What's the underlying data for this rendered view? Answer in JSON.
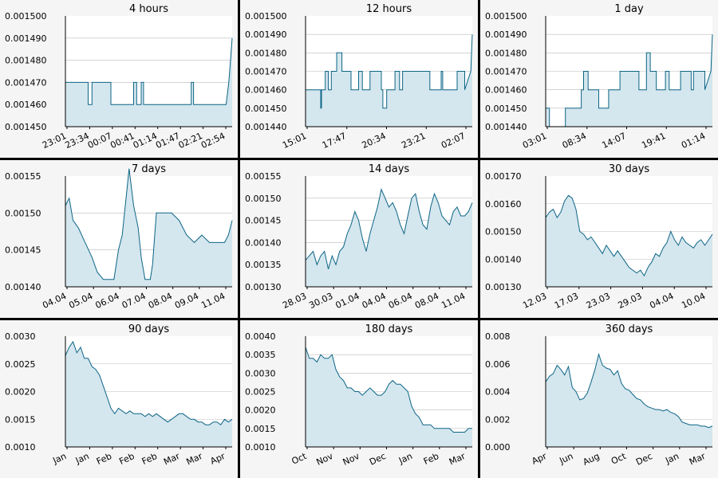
{
  "colors": {
    "line": "#0d6585",
    "fill": "#d4e6ee",
    "grid": "#bbbbbb",
    "plot_bg": "#ffffff"
  },
  "chart_data": [
    {
      "type": "area",
      "title": "4 hours",
      "y_ticks": [
        "0.001450",
        "0.001460",
        "0.001470",
        "0.001480",
        "0.001490",
        "0.001500"
      ],
      "ylim": [
        0.00145,
        0.0015
      ],
      "x_ticks": [
        "23:01",
        "23:34",
        "00:07",
        "00:41",
        "01:14",
        "01:47",
        "02:21",
        "02:54"
      ],
      "x": [
        0.0,
        0.005,
        0.1364,
        0.1364,
        0.1591,
        0.1591,
        0.2727,
        0.2727,
        0.4091,
        0.4091,
        0.4273,
        0.4273,
        0.4545,
        0.4545,
        0.4682,
        0.4682,
        0.4864,
        0.4864,
        0.7545,
        0.7545,
        0.7682,
        0.7682,
        0.9636,
        0.98,
        1.0
      ],
      "values": [
        0.00147,
        0.00147,
        0.00147,
        0.00146,
        0.00146,
        0.00147,
        0.00147,
        0.00146,
        0.00146,
        0.00147,
        0.00147,
        0.00146,
        0.00146,
        0.00147,
        0.00147,
        0.00146,
        0.00146,
        0.00146,
        0.00146,
        0.00147,
        0.00147,
        0.00146,
        0.00146,
        0.00147,
        0.00149
      ]
    },
    {
      "type": "area",
      "title": "12 hours",
      "y_ticks": [
        "0.001440",
        "0.001450",
        "0.001460",
        "0.001470",
        "0.001480",
        "0.001490",
        "0.001500"
      ],
      "ylim": [
        0.00144,
        0.0015
      ],
      "x_ticks": [
        "15:01",
        "17:47",
        "20:34",
        "23:21",
        "02:07"
      ],
      "x": [
        0.0,
        0.0909,
        0.0909,
        0.0955,
        0.0955,
        0.1182,
        0.1182,
        0.1364,
        0.1364,
        0.1545,
        0.1545,
        0.1864,
        0.1864,
        0.2182,
        0.2182,
        0.2727,
        0.2727,
        0.3182,
        0.3182,
        0.3409,
        0.3409,
        0.3864,
        0.3864,
        0.4545,
        0.4545,
        0.4636,
        0.4636,
        0.4864,
        0.4864,
        0.5364,
        0.5364,
        0.5636,
        0.5636,
        0.5818,
        0.5818,
        0.7455,
        0.7455,
        0.8136,
        0.8136,
        0.8227,
        0.8227,
        0.9091,
        0.9091,
        0.9545,
        0.9545,
        0.9909,
        1.0
      ],
      "values": [
        0.00146,
        0.00146,
        0.00145,
        0.00145,
        0.00146,
        0.00146,
        0.00147,
        0.00147,
        0.00146,
        0.00146,
        0.00147,
        0.00147,
        0.00148,
        0.00148,
        0.00147,
        0.00147,
        0.00146,
        0.00146,
        0.00147,
        0.00147,
        0.00146,
        0.00146,
        0.00147,
        0.00147,
        0.00146,
        0.00146,
        0.00145,
        0.00145,
        0.00146,
        0.00146,
        0.00147,
        0.00147,
        0.00146,
        0.00146,
        0.00147,
        0.00147,
        0.00146,
        0.00146,
        0.00147,
        0.00147,
        0.00146,
        0.00146,
        0.00147,
        0.00147,
        0.00146,
        0.00147,
        0.00149
      ]
    },
    {
      "type": "area",
      "title": "1 day",
      "y_ticks": [
        "0.001440",
        "0.001450",
        "0.001460",
        "0.001470",
        "0.001480",
        "0.001490",
        "0.001500"
      ],
      "ylim": [
        0.00144,
        0.0015
      ],
      "x_ticks": [
        "03:01",
        "08:34",
        "14:07",
        "19:41",
        "01:14"
      ],
      "x": [
        0.0,
        0.0227,
        0.0227,
        0.1182,
        0.1182,
        0.2136,
        0.2136,
        0.2273,
        0.2273,
        0.2545,
        0.2545,
        0.3182,
        0.3182,
        0.3773,
        0.3773,
        0.4455,
        0.4455,
        0.5591,
        0.5591,
        0.6045,
        0.6045,
        0.6273,
        0.6273,
        0.6636,
        0.6636,
        0.7182,
        0.7182,
        0.7409,
        0.7409,
        0.8091,
        0.8091,
        0.8727,
        0.8727,
        0.8864,
        0.8864,
        0.9545,
        0.9545,
        0.9909,
        1.0
      ],
      "values": [
        0.00145,
        0.00145,
        0.00144,
        0.00144,
        0.00145,
        0.00145,
        0.00146,
        0.00146,
        0.00147,
        0.00147,
        0.00146,
        0.00146,
        0.00145,
        0.00145,
        0.00146,
        0.00146,
        0.00147,
        0.00147,
        0.00146,
        0.00146,
        0.00148,
        0.00148,
        0.00147,
        0.00147,
        0.00146,
        0.00146,
        0.00147,
        0.00147,
        0.00146,
        0.00146,
        0.00147,
        0.00147,
        0.00146,
        0.00146,
        0.00147,
        0.00147,
        0.00146,
        0.00147,
        0.00149
      ]
    },
    {
      "type": "area",
      "title": "7 days",
      "y_ticks": [
        "0.00140",
        "0.00145",
        "0.00150",
        "0.00155"
      ],
      "ylim": [
        0.0014,
        0.00155
      ],
      "x_ticks": [
        "04.04",
        "05.04",
        "06.04",
        "07.04",
        "08.04",
        "09.04",
        "11.04"
      ],
      "x": [
        0.0,
        0.0227,
        0.0455,
        0.0773,
        0.1182,
        0.1591,
        0.1909,
        0.2273,
        0.2682,
        0.2909,
        0.3182,
        0.3409,
        0.3636,
        0.3818,
        0.4091,
        0.4364,
        0.4545,
        0.4773,
        0.5091,
        0.5227,
        0.5455,
        0.5909,
        0.6364,
        0.6818,
        0.7273,
        0.7727,
        0.8182,
        0.8636,
        0.9091,
        0.9545,
        0.9773,
        1.0
      ],
      "values": [
        0.00151,
        0.00152,
        0.00149,
        0.00148,
        0.00146,
        0.00144,
        0.00142,
        0.00141,
        0.00141,
        0.00141,
        0.00145,
        0.00147,
        0.00152,
        0.00156,
        0.00151,
        0.00148,
        0.00144,
        0.00141,
        0.00141,
        0.00143,
        0.0015,
        0.0015,
        0.0015,
        0.00149,
        0.00147,
        0.00146,
        0.00147,
        0.00146,
        0.00146,
        0.00146,
        0.00147,
        0.00149
      ]
    },
    {
      "type": "area",
      "title": "14 days",
      "y_ticks": [
        "0.00130",
        "0.00135",
        "0.00140",
        "0.00145",
        "0.00150",
        "0.00155"
      ],
      "ylim": [
        0.0013,
        0.00155
      ],
      "x_ticks": [
        "28.03",
        "30.03",
        "01.04",
        "04.04",
        "06.04",
        "08.04",
        "11.04"
      ],
      "x": [
        0.0,
        0.0227,
        0.0455,
        0.0682,
        0.0909,
        0.1136,
        0.1364,
        0.1591,
        0.1818,
        0.2045,
        0.2273,
        0.25,
        0.2727,
        0.2955,
        0.3182,
        0.3409,
        0.3636,
        0.3864,
        0.4091,
        0.4318,
        0.4545,
        0.4773,
        0.5,
        0.5227,
        0.5455,
        0.5682,
        0.5909,
        0.6136,
        0.6364,
        0.6591,
        0.6818,
        0.7045,
        0.7273,
        0.75,
        0.7727,
        0.7955,
        0.8182,
        0.8409,
        0.8636,
        0.8864,
        0.9091,
        0.9318,
        0.9545,
        0.9773,
        1.0
      ],
      "values": [
        0.00136,
        0.00137,
        0.00138,
        0.00135,
        0.00137,
        0.00138,
        0.00134,
        0.00137,
        0.00135,
        0.00138,
        0.00139,
        0.00142,
        0.00144,
        0.00147,
        0.00145,
        0.00141,
        0.00138,
        0.00142,
        0.00145,
        0.00148,
        0.00152,
        0.0015,
        0.00148,
        0.00149,
        0.00147,
        0.00144,
        0.00142,
        0.00146,
        0.0015,
        0.00151,
        0.00147,
        0.00144,
        0.00143,
        0.00148,
        0.00151,
        0.00149,
        0.00146,
        0.00145,
        0.00144,
        0.00147,
        0.00148,
        0.00146,
        0.00146,
        0.00147,
        0.00149
      ]
    },
    {
      "type": "area",
      "title": "30 days",
      "y_ticks": [
        "0.00130",
        "0.00140",
        "0.00150",
        "0.00160",
        "0.00170"
      ],
      "ylim": [
        0.0013,
        0.0017
      ],
      "x_ticks": [
        "12.03",
        "17.03",
        "23.03",
        "29.03",
        "04.04",
        "10.04"
      ],
      "x": [
        0.0,
        0.0227,
        0.0455,
        0.0682,
        0.0909,
        0.1136,
        0.1364,
        0.1591,
        0.1818,
        0.2045,
        0.2273,
        0.25,
        0.2727,
        0.2955,
        0.3182,
        0.3409,
        0.3636,
        0.3864,
        0.4091,
        0.4318,
        0.4545,
        0.4773,
        0.5,
        0.5227,
        0.5455,
        0.5682,
        0.5909,
        0.6136,
        0.6364,
        0.6591,
        0.6818,
        0.7045,
        0.7273,
        0.75,
        0.7727,
        0.7955,
        0.8182,
        0.8409,
        0.8636,
        0.8864,
        0.9091,
        0.9318,
        0.9545,
        0.9773,
        1.0
      ],
      "values": [
        0.00155,
        0.00157,
        0.00158,
        0.00155,
        0.00157,
        0.00161,
        0.00163,
        0.00162,
        0.00158,
        0.0015,
        0.00149,
        0.00147,
        0.00148,
        0.00146,
        0.00144,
        0.00142,
        0.00145,
        0.00143,
        0.00141,
        0.00143,
        0.00141,
        0.00139,
        0.00137,
        0.00136,
        0.00135,
        0.00136,
        0.00134,
        0.00137,
        0.00139,
        0.00142,
        0.00141,
        0.00144,
        0.00146,
        0.0015,
        0.00147,
        0.00145,
        0.00148,
        0.00146,
        0.00145,
        0.00144,
        0.00146,
        0.00147,
        0.00145,
        0.00147,
        0.00149
      ]
    },
    {
      "type": "area",
      "title": "90 days",
      "y_ticks": [
        "0.0010",
        "0.0015",
        "0.0020",
        "0.0025",
        "0.0030"
      ],
      "ylim": [
        0.001,
        0.003
      ],
      "x_ticks": [
        "Jan",
        "Jan",
        "Feb",
        "Feb",
        "Feb",
        "Mar",
        "Mar",
        "Apr"
      ],
      "x": [
        0.0,
        0.0227,
        0.0455,
        0.0682,
        0.0909,
        0.1136,
        0.1364,
        0.1591,
        0.1818,
        0.2045,
        0.2273,
        0.25,
        0.2727,
        0.2955,
        0.3182,
        0.3409,
        0.3636,
        0.3864,
        0.4091,
        0.4318,
        0.4545,
        0.4773,
        0.5,
        0.5227,
        0.5455,
        0.5682,
        0.5909,
        0.6136,
        0.6364,
        0.6591,
        0.6818,
        0.7045,
        0.7273,
        0.75,
        0.7727,
        0.7955,
        0.8182,
        0.8409,
        0.8636,
        0.8864,
        0.9091,
        0.9318,
        0.9545,
        0.9773,
        1.0
      ],
      "values": [
        0.00265,
        0.0028,
        0.0029,
        0.0027,
        0.0028,
        0.0026,
        0.0026,
        0.00245,
        0.0024,
        0.0023,
        0.0021,
        0.0019,
        0.0017,
        0.0016,
        0.0017,
        0.00165,
        0.0016,
        0.00165,
        0.0016,
        0.0016,
        0.0016,
        0.00155,
        0.0016,
        0.00155,
        0.0016,
        0.00155,
        0.0015,
        0.00145,
        0.0015,
        0.00155,
        0.0016,
        0.0016,
        0.00155,
        0.0015,
        0.0015,
        0.00145,
        0.00145,
        0.0014,
        0.0014,
        0.00145,
        0.00145,
        0.0014,
        0.0015,
        0.00145,
        0.0015
      ]
    },
    {
      "type": "area",
      "title": "180 days",
      "y_ticks": [
        "0.0010",
        "0.0015",
        "0.0020",
        "0.0025",
        "0.0030",
        "0.0035",
        "0.0040"
      ],
      "ylim": [
        0.001,
        0.004
      ],
      "x_ticks": [
        "Oct",
        "Nov",
        "Nov",
        "Dec",
        "Jan",
        "Feb",
        "Mar"
      ],
      "x": [
        0.0,
        0.0227,
        0.0455,
        0.0682,
        0.0909,
        0.1136,
        0.1364,
        0.1591,
        0.1818,
        0.2045,
        0.2273,
        0.25,
        0.2727,
        0.2955,
        0.3182,
        0.3409,
        0.3636,
        0.3864,
        0.4091,
        0.4318,
        0.4545,
        0.4773,
        0.5,
        0.5227,
        0.5455,
        0.5682,
        0.5909,
        0.6136,
        0.6364,
        0.6591,
        0.6818,
        0.7045,
        0.7273,
        0.75,
        0.7727,
        0.7955,
        0.8182,
        0.8409,
        0.8636,
        0.8864,
        0.9091,
        0.9318,
        0.9545,
        0.9773,
        1.0
      ],
      "values": [
        0.0037,
        0.0034,
        0.0034,
        0.0033,
        0.0035,
        0.0034,
        0.0034,
        0.0035,
        0.0031,
        0.0029,
        0.0028,
        0.0026,
        0.0026,
        0.0025,
        0.0025,
        0.0024,
        0.0025,
        0.0026,
        0.0025,
        0.0024,
        0.0024,
        0.0025,
        0.0027,
        0.0028,
        0.0027,
        0.0027,
        0.0026,
        0.0025,
        0.0021,
        0.0019,
        0.0018,
        0.0016,
        0.0016,
        0.0016,
        0.0015,
        0.0015,
        0.0015,
        0.0015,
        0.0015,
        0.0014,
        0.0014,
        0.0014,
        0.0014,
        0.0015,
        0.0015
      ]
    },
    {
      "type": "area",
      "title": "360 days",
      "y_ticks": [
        "0.000",
        "0.002",
        "0.004",
        "0.006",
        "0.008"
      ],
      "ylim": [
        0.0,
        0.008
      ],
      "x_ticks": [
        "Apr",
        "Jun",
        "Aug",
        "Oct",
        "Dec",
        "Jan",
        "Mar"
      ],
      "x": [
        0.0,
        0.0227,
        0.0455,
        0.0682,
        0.0909,
        0.1136,
        0.1364,
        0.1591,
        0.1818,
        0.2045,
        0.2273,
        0.25,
        0.2727,
        0.2955,
        0.3182,
        0.3409,
        0.3636,
        0.3864,
        0.4091,
        0.4318,
        0.4545,
        0.4773,
        0.5,
        0.5227,
        0.5455,
        0.5682,
        0.5909,
        0.6136,
        0.6364,
        0.6591,
        0.6818,
        0.7045,
        0.7273,
        0.75,
        0.7727,
        0.7955,
        0.8182,
        0.8409,
        0.8636,
        0.8864,
        0.9091,
        0.9318,
        0.9545,
        0.9773,
        1.0
      ],
      "values": [
        0.0047,
        0.0051,
        0.0053,
        0.0059,
        0.0056,
        0.0052,
        0.0058,
        0.0043,
        0.004,
        0.0034,
        0.0035,
        0.0039,
        0.0047,
        0.0056,
        0.0067,
        0.0059,
        0.0057,
        0.0056,
        0.0052,
        0.0055,
        0.0046,
        0.0042,
        0.0041,
        0.0038,
        0.0035,
        0.0034,
        0.0031,
        0.0029,
        0.0028,
        0.0027,
        0.0027,
        0.0026,
        0.0027,
        0.0025,
        0.0024,
        0.0022,
        0.0018,
        0.0017,
        0.0016,
        0.0016,
        0.0016,
        0.0015,
        0.0015,
        0.0014,
        0.0015
      ]
    }
  ]
}
